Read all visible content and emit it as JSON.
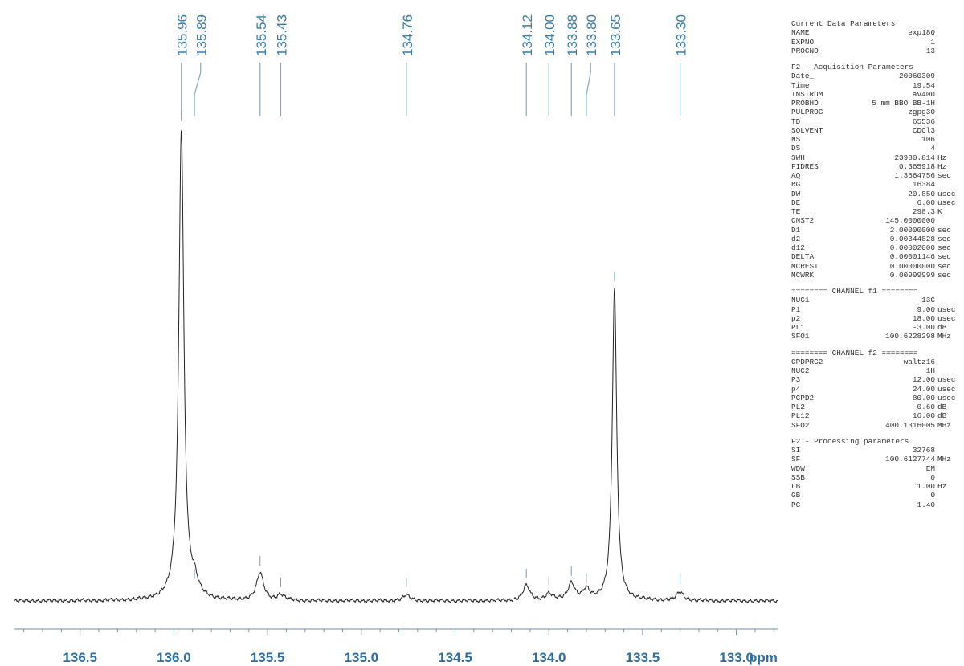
{
  "chart_data": {
    "type": "line",
    "title": "",
    "xlabel": "ppm",
    "ylabel": "",
    "xlim": [
      136.85,
      132.78
    ],
    "x_ticks": [
      136.5,
      136.0,
      135.5,
      135.0,
      134.5,
      134.0,
      133.5,
      133.0
    ],
    "x_tick_labels": [
      "136.5",
      "136.0",
      "135.5",
      "135.0",
      "134.5",
      "134.0",
      "133.5",
      "133.0"
    ],
    "grid": false,
    "peaks": [
      {
        "label": "135.96",
        "ppm": 135.96,
        "intensity": 1.0
      },
      {
        "label": "135.89",
        "ppm": 135.89,
        "intensity": 0.03
      },
      {
        "label": "135.54",
        "ppm": 135.54,
        "intensity": 0.058
      },
      {
        "label": "135.43",
        "ppm": 135.43,
        "intensity": 0.012
      },
      {
        "label": "134.76",
        "ppm": 134.76,
        "intensity": 0.012
      },
      {
        "label": "134.12",
        "ppm": 134.12,
        "intensity": 0.031
      },
      {
        "label": "134.00",
        "ppm": 134.0,
        "intensity": 0.014
      },
      {
        "label": "133.88",
        "ppm": 133.88,
        "intensity": 0.036
      },
      {
        "label": "133.80",
        "ppm": 133.8,
        "intensity": 0.021
      },
      {
        "label": "133.65",
        "ppm": 133.65,
        "intensity": 0.66
      },
      {
        "label": "133.30",
        "ppm": 133.3,
        "intensity": 0.018
      }
    ],
    "colors": {
      "peak_labels": "#3a7ca8",
      "axis_labels": "#2f6e9e",
      "trace": "#222222"
    }
  },
  "params": {
    "current": {
      "title": "Current Data Parameters",
      "rows": [
        {
          "k": "NAME",
          "v": "exp180",
          "u": ""
        },
        {
          "k": "EXPNO",
          "v": "1",
          "u": ""
        },
        {
          "k": "PROCNO",
          "v": "13",
          "u": ""
        }
      ]
    },
    "acq": {
      "title": "F2 - Acquisition Parameters",
      "rows": [
        {
          "k": "Date_",
          "v": "20060309",
          "u": ""
        },
        {
          "k": "Time",
          "v": "19.54",
          "u": ""
        },
        {
          "k": "INSTRUM",
          "v": "av400",
          "u": ""
        },
        {
          "k": "PROBHD",
          "v": "5 mm BBO BB-1H",
          "u": ""
        },
        {
          "k": "PULPROG",
          "v": "zgpg30",
          "u": ""
        },
        {
          "k": "TD",
          "v": "65536",
          "u": ""
        },
        {
          "k": "SOLVENT",
          "v": "CDCl3",
          "u": ""
        },
        {
          "k": "NS",
          "v": "106",
          "u": ""
        },
        {
          "k": "DS",
          "v": "4",
          "u": ""
        },
        {
          "k": "SWH",
          "v": "23980.814",
          "u": "Hz"
        },
        {
          "k": "FIDRES",
          "v": "0.365918",
          "u": "Hz"
        },
        {
          "k": "AQ",
          "v": "1.3664756",
          "u": "sec"
        },
        {
          "k": "RG",
          "v": "16384",
          "u": ""
        },
        {
          "k": "DW",
          "v": "20.850",
          "u": "usec"
        },
        {
          "k": "DE",
          "v": "6.00",
          "u": "usec"
        },
        {
          "k": "TE",
          "v": "298.3",
          "u": "K"
        },
        {
          "k": "CNST2",
          "v": "145.0000000",
          "u": ""
        },
        {
          "k": "D1",
          "v": "2.00000000",
          "u": "sec"
        },
        {
          "k": "d2",
          "v": "0.00344828",
          "u": "sec"
        },
        {
          "k": "d12",
          "v": "0.00002000",
          "u": "sec"
        },
        {
          "k": "DELTA",
          "v": "0.00001146",
          "u": "sec"
        },
        {
          "k": "MCREST",
          "v": "0.00000000",
          "u": "sec"
        },
        {
          "k": "MCWRK",
          "v": "0.00999999",
          "u": "sec"
        }
      ]
    },
    "ch1": {
      "title": "======== CHANNEL f1 ========",
      "rows": [
        {
          "k": "NUC1",
          "v": "13C",
          "u": ""
        },
        {
          "k": "P1",
          "v": "9.00",
          "u": "usec"
        },
        {
          "k": "p2",
          "v": "18.00",
          "u": "usec"
        },
        {
          "k": "PL1",
          "v": "-3.00",
          "u": "dB"
        },
        {
          "k": "SFO1",
          "v": "100.6228298",
          "u": "MHz"
        }
      ]
    },
    "ch2": {
      "title": "======== CHANNEL f2 ========",
      "rows": [
        {
          "k": "CPDPRG2",
          "v": "waltz16",
          "u": ""
        },
        {
          "k": "NUC2",
          "v": "1H",
          "u": ""
        },
        {
          "k": "P3",
          "v": "12.00",
          "u": "usec"
        },
        {
          "k": "p4",
          "v": "24.00",
          "u": "usec"
        },
        {
          "k": "PCPD2",
          "v": "80.00",
          "u": "usec"
        },
        {
          "k": "PL2",
          "v": "-0.60",
          "u": "dB"
        },
        {
          "k": "PL12",
          "v": "16.00",
          "u": "dB"
        },
        {
          "k": "SFO2",
          "v": "400.1316005",
          "u": "MHz"
        }
      ]
    },
    "proc": {
      "title": "F2 - Processing parameters",
      "rows": [
        {
          "k": "SI",
          "v": "32768",
          "u": ""
        },
        {
          "k": "SF",
          "v": "100.6127744",
          "u": "MHz"
        },
        {
          "k": "WDW",
          "v": "EM",
          "u": ""
        },
        {
          "k": "SSB",
          "v": "0",
          "u": ""
        },
        {
          "k": "LB",
          "v": "1.00",
          "u": "Hz"
        },
        {
          "k": "GB",
          "v": "0",
          "u": ""
        },
        {
          "k": "PC",
          "v": "1.40",
          "u": ""
        }
      ]
    }
  }
}
